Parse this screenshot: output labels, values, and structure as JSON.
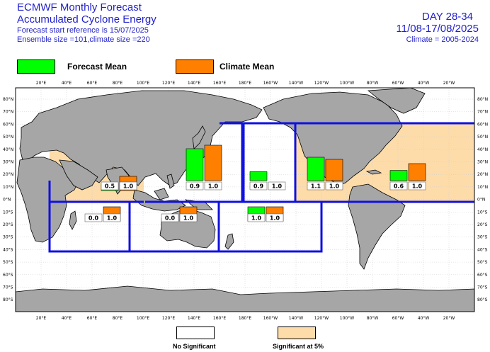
{
  "header": {
    "title_line1": "ECMWF Monthly Forecast",
    "title_line2": "Accumulated Cyclone Energy",
    "forecast_start": "Forecast start reference is 15/07/2025",
    "ensemble": "Ensemble size =101,climate size =220",
    "day_range": "DAY 28-34",
    "date_range": "11/08-17/08/2025",
    "climate_period": "Climate = 2005-2024"
  },
  "legend": {
    "forecast_label": "Forecast Mean",
    "forecast_color": "#00ff00",
    "climate_label": "Climate Mean",
    "climate_color": "#ff7f00"
  },
  "footer": {
    "no_sig_label": "No Significant",
    "no_sig_color": "#ffffff",
    "sig_label": "Significant at 5%",
    "sig_color": "#fddcaa"
  },
  "colors": {
    "land": "#a6a6a6",
    "ocean": "#ffffff",
    "basin_border": "#1010e0"
  },
  "lon_labels": [
    "20°E",
    "40°E",
    "60°E",
    "80°E",
    "100°E",
    "120°E",
    "140°E",
    "160°E",
    "180°E",
    "160°W",
    "140°W",
    "120°W",
    "100°W",
    "80°W",
    "60°W",
    "40°W",
    "20°W"
  ],
  "lat_labels": [
    "80°N",
    "70°N",
    "60°N",
    "50°N",
    "40°N",
    "30°N",
    "20°N",
    "10°N",
    "0°N",
    "10°S",
    "20°S",
    "30°S",
    "40°S",
    "50°S",
    "60°S",
    "70°S",
    "80°S"
  ],
  "basins": [
    {
      "id": "north-indian",
      "forecast": 0.5,
      "climate": 1.0,
      "forecast_label": "0.5",
      "climate_label": "1.0",
      "significant": true
    },
    {
      "id": "west-pacific",
      "forecast": 0.9,
      "climate": 1.0,
      "forecast_label": "0.9",
      "climate_label": "1.0",
      "significant": false
    },
    {
      "id": "central-pacific",
      "forecast": 0.9,
      "climate": 1.0,
      "forecast_label": "0.9",
      "climate_label": "1.0",
      "significant": false
    },
    {
      "id": "east-pacific",
      "forecast": 1.1,
      "climate": 1.0,
      "forecast_label": "1.1",
      "climate_label": "1.0",
      "significant": false
    },
    {
      "id": "atlantic",
      "forecast": 0.6,
      "climate": 1.0,
      "forecast_label": "0.6",
      "climate_label": "1.0",
      "significant": true
    },
    {
      "id": "south-indian",
      "forecast": 0.0,
      "climate": 1.0,
      "forecast_label": "0.0",
      "climate_label": "1.0",
      "significant": false
    },
    {
      "id": "australian",
      "forecast": 0.0,
      "climate": 1.0,
      "forecast_label": "0.0",
      "climate_label": "1.0",
      "significant": false
    },
    {
      "id": "south-pacific",
      "forecast": 1.0,
      "climate": 1.0,
      "forecast_label": "1.0",
      "climate_label": "1.0",
      "significant": false
    }
  ]
}
